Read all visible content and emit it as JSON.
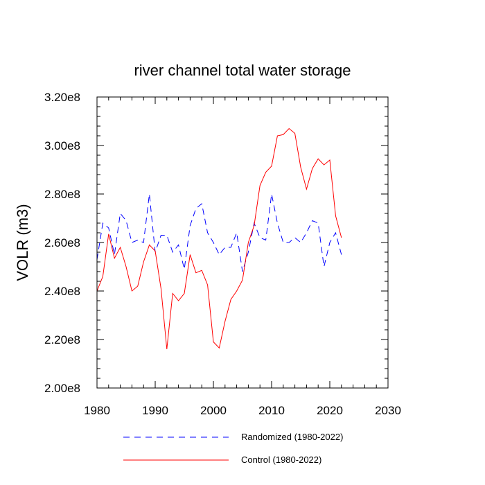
{
  "chart_data": {
    "type": "line",
    "title": "river channel total water storage",
    "ylabel": "VOLR  (m3)",
    "xlabel": "",
    "xlim": [
      1980,
      2030
    ],
    "ylim": [
      200000000,
      320000000
    ],
    "x_ticks": [
      {
        "value": 1980,
        "label": "1980"
      },
      {
        "value": 1990,
        "label": "1990"
      },
      {
        "value": 2000,
        "label": "2000"
      },
      {
        "value": 2010,
        "label": "2010"
      },
      {
        "value": 2020,
        "label": "2020"
      },
      {
        "value": 2030,
        "label": "2030"
      }
    ],
    "y_ticks": [
      {
        "value": 200000000,
        "label": "2.00e8"
      },
      {
        "value": 220000000,
        "label": "2.20e8"
      },
      {
        "value": 240000000,
        "label": "2.40e8"
      },
      {
        "value": 260000000,
        "label": "2.60e8"
      },
      {
        "value": 280000000,
        "label": "2.80e8"
      },
      {
        "value": 300000000,
        "label": "3.00e8"
      },
      {
        "value": 320000000,
        "label": "3.20e8"
      }
    ],
    "x_minor_step": 2,
    "y_minor_step": 4000000,
    "legend_position": "bottom",
    "x": [
      1980,
      1981,
      1982,
      1983,
      1984,
      1985,
      1986,
      1987,
      1988,
      1989,
      1990,
      1991,
      1992,
      1993,
      1994,
      1995,
      1996,
      1997,
      1998,
      1999,
      2000,
      2001,
      2002,
      2003,
      2004,
      2005,
      2006,
      2007,
      2008,
      2009,
      2010,
      2011,
      2012,
      2013,
      2014,
      2015,
      2016,
      2017,
      2018,
      2019,
      2020,
      2021,
      2022
    ],
    "series": [
      {
        "name": "Randomized (1980-2022)",
        "color": "#0000ff",
        "dash": "dashed",
        "values": [
          253000000,
          268000000,
          266000000,
          255000000,
          272000000,
          269000000,
          260000000,
          261000000,
          260000000,
          280000000,
          256000000,
          263000000,
          263000000,
          256000000,
          259000000,
          249000000,
          267000000,
          274000000,
          276000000,
          264000000,
          260000000,
          255000000,
          258000000,
          258000000,
          264000000,
          248000000,
          256000000,
          268000000,
          262000000,
          261000000,
          280000000,
          268000000,
          260000000,
          260000000,
          262000000,
          260000000,
          264000000,
          269000000,
          268000000,
          250000000,
          260000000,
          264000000,
          255000000
        ]
      },
      {
        "name": "Control (1980-2022)",
        "color": "#ff0000",
        "dash": "solid",
        "values": [
          240000000,
          246000000,
          263500000,
          253500000,
          258000000,
          250000000,
          240000000,
          242000000,
          252000000,
          259000000,
          256500000,
          241000000,
          216000000,
          239000000,
          236000000,
          239000000,
          255000000,
          247500000,
          248500000,
          242500000,
          219000000,
          216500000,
          227500000,
          236500000,
          240000000,
          244500000,
          260000000,
          267000000,
          283500000,
          289000000,
          291500000,
          304000000,
          304500000,
          307000000,
          305000000,
          291000000,
          282000000,
          290500000,
          294500000,
          292000000,
          294000000,
          271000000,
          262000000
        ]
      }
    ]
  }
}
